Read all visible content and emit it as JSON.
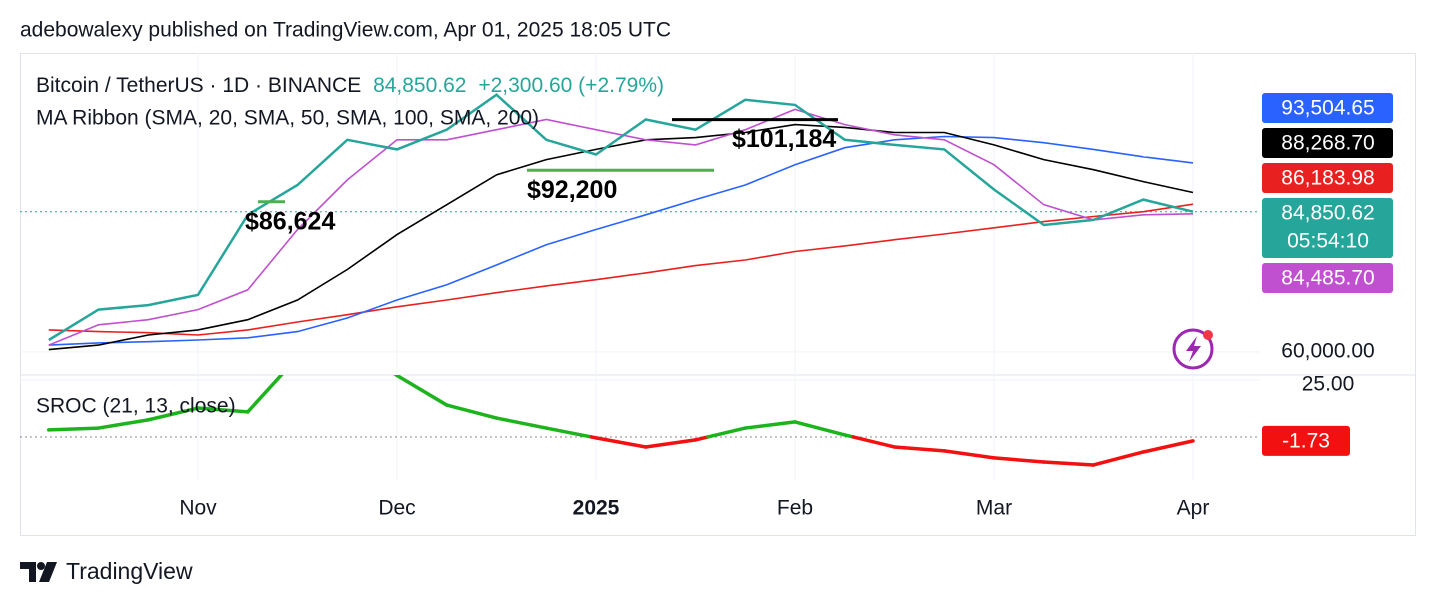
{
  "header": "adebowalexy published on TradingView.com, Apr 01, 2025 18:05 UTC",
  "footer": "TradingView",
  "chart_data": [
    {
      "type": "line",
      "title": "Bitcoin / TetherUS · 1D · BINANCE",
      "last_price_label": "84,850.62",
      "change_label": "+2,300.60 (+2.79%)",
      "subtitle": "MA Ribbon (SMA, 20, SMA, 50, SMA, 100, SMA, 200)",
      "countdown": "05:54:10",
      "categories": [
        null,
        null,
        null,
        null,
        "Nov",
        null,
        null,
        null,
        "Dec",
        null,
        null,
        null,
        "2025",
        null,
        null,
        null,
        "Feb",
        null,
        null,
        null,
        "Mar",
        null,
        null,
        null,
        "Apr"
      ],
      "ylim": [
        55900,
        113000
      ],
      "yticks": [
        {
          "value": 60000,
          "label": "60,000.00"
        }
      ],
      "series": [
        {
          "color": "#26a69a",
          "values": [
            null,
            62100,
            67500,
            68300,
            70100,
            84300,
            89600,
            97600,
            95900,
            99400,
            105600,
            97600,
            95000,
            101200,
            99400,
            104700,
            103800,
            97600,
            96700,
            95900,
            88800,
            82500,
            83400,
            87000,
            84850.62
          ]
        },
        {
          "color": "#c050d0",
          "last_label": "84,485.70",
          "values": [
            null,
            61200,
            64800,
            65700,
            67500,
            71000,
            81700,
            90500,
            97600,
            97600,
            99400,
            101200,
            99400,
            97600,
            96700,
            99400,
            103000,
            100300,
            98500,
            97600,
            93200,
            86100,
            83400,
            84300,
            84485.7
          ]
        },
        {
          "color": "#000000",
          "last_label": "88,268.70",
          "values": [
            null,
            60400,
            61200,
            63000,
            63900,
            65700,
            69200,
            74600,
            80800,
            86100,
            91400,
            94100,
            95900,
            97600,
            98000,
            98900,
            100300,
            99800,
            98900,
            98900,
            96700,
            94100,
            92300,
            90200,
            88268.7
          ]
        },
        {
          "color": "#2962ff",
          "last_label": "93,504.65",
          "values": [
            null,
            61200,
            61600,
            61800,
            62100,
            62500,
            63600,
            66000,
            69200,
            71900,
            75400,
            79000,
            81700,
            84300,
            87000,
            89600,
            93200,
            96200,
            97600,
            98200,
            98000,
            97100,
            95900,
            94600,
            93504.65
          ]
        },
        {
          "color": "#e82020",
          "last_label": "86,183.98",
          "values": [
            null,
            63900,
            63600,
            63400,
            63000,
            63900,
            65300,
            66600,
            68000,
            69200,
            70500,
            71700,
            72800,
            74000,
            75300,
            76300,
            77800,
            78800,
            79900,
            80900,
            82000,
            83100,
            84000,
            84850,
            86183.98
          ]
        }
      ],
      "annotations": [
        {
          "text": "$86,624",
          "value": 86624,
          "color": "#4caf50"
        },
        {
          "text": "$92,200",
          "value": 92200,
          "color": "#4caf50"
        },
        {
          "text": "$101,184",
          "value": 101184,
          "color": "#000000"
        }
      ]
    },
    {
      "type": "line",
      "title": "SROC (21, 13, close)",
      "ylim": [
        -18.9,
        27.2
      ],
      "yticks": [
        {
          "value": 25,
          "label": "25.00"
        }
      ],
      "positive_color": "#1db31d",
      "negative_color": "#f21010",
      "values": [
        null,
        3.1,
        3.9,
        7.5,
        12.7,
        11,
        35,
        42,
        27,
        14,
        8.3,
        3.9,
        -0.4,
        -4.4,
        -1.3,
        3.9,
        6.6,
        0.9,
        -4.4,
        -6.1,
        -9.2,
        -11,
        -12.3,
        -6.6,
        -1.73
      ]
    }
  ]
}
